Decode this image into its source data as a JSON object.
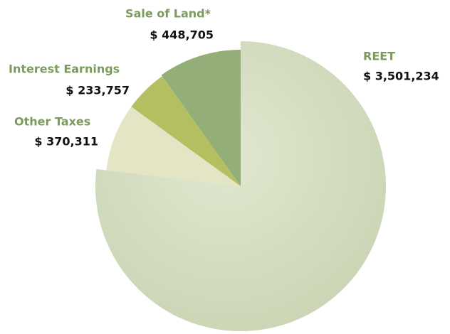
{
  "chart_data": {
    "type": "pie",
    "categories": [
      "REET",
      "Other Taxes",
      "Interest Earnings",
      "Sale of Land*"
    ],
    "values": [
      3501234,
      370311,
      233757,
      448705
    ],
    "value_labels": [
      "$ 3,501,234",
      "$ 370,311",
      "$ 233,757",
      "$ 448,705"
    ],
    "colors": [
      "#d6dfc0",
      "#e4e5c4",
      "#b4bf62",
      "#94ae77"
    ]
  }
}
